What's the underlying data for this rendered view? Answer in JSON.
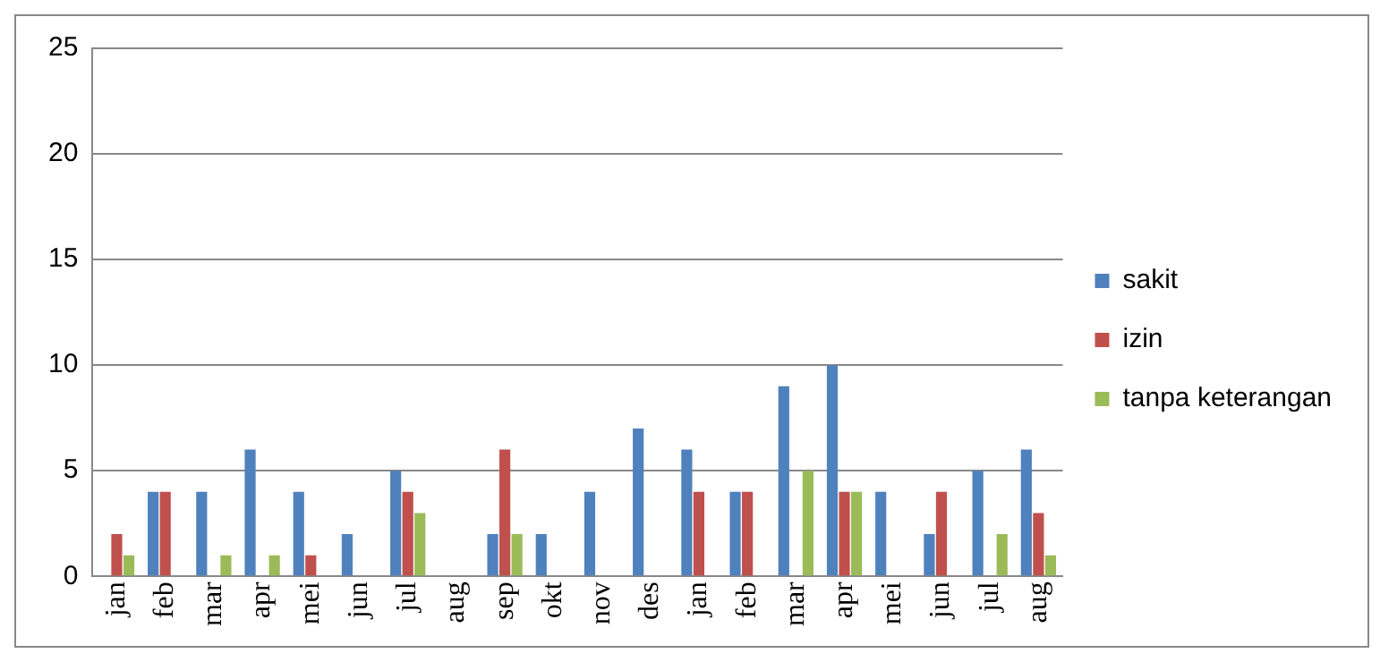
{
  "chart_data": {
    "type": "bar",
    "categories": [
      "jan",
      "feb",
      "mar",
      "apr",
      "mei",
      "jun",
      "jul",
      "aug",
      "sep",
      "okt",
      "nov",
      "des",
      "jan",
      "feb",
      "mar",
      "apr",
      "mei",
      "jun",
      "jul",
      "aug"
    ],
    "series": [
      {
        "name": "sakit",
        "color": "#4f81bd",
        "values": [
          0,
          4,
          4,
          6,
          4,
          2,
          5,
          0,
          2,
          2,
          4,
          7,
          6,
          4,
          9,
          10,
          4,
          2,
          5,
          6
        ]
      },
      {
        "name": "izin",
        "color": "#c0504d",
        "values": [
          2,
          4,
          0,
          0,
          1,
          0,
          4,
          0,
          6,
          0,
          0,
          0,
          4,
          4,
          0,
          4,
          0,
          4,
          0,
          3
        ]
      },
      {
        "name": "tanpa keterangan",
        "color": "#9bbb59",
        "values": [
          1,
          0,
          1,
          1,
          0,
          0,
          3,
          0,
          2,
          0,
          0,
          0,
          0,
          0,
          5,
          4,
          0,
          0,
          2,
          1
        ]
      }
    ],
    "ylim": [
      0,
      25
    ],
    "yticks": [
      0,
      5,
      10,
      15,
      20,
      25
    ],
    "grid": "y",
    "legend": "right"
  }
}
